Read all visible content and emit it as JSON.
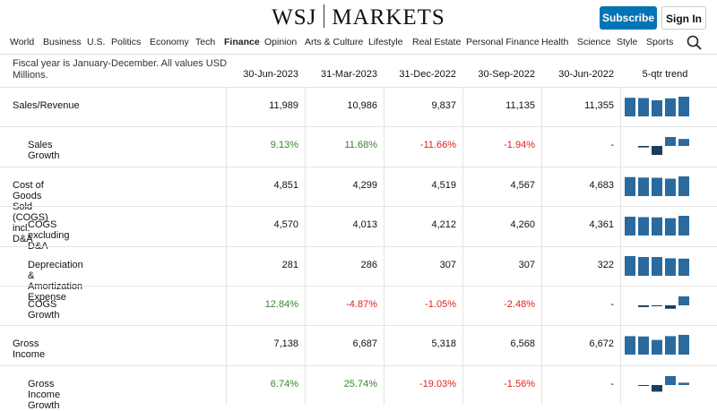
{
  "header": {
    "logo_left": "WSJ",
    "logo_right": "MARKETS",
    "subscribe": "Subscribe",
    "sign_in": "Sign In"
  },
  "nav": [
    "World",
    "Business",
    "U.S.",
    "Politics",
    "Economy",
    "Tech",
    "Finance",
    "Opinion",
    "Arts & Culture",
    "Lifestyle",
    "Real Estate",
    "Personal Finance",
    "Health",
    "Science",
    "Style",
    "Sports"
  ],
  "active_nav": 6,
  "table": {
    "note": "Fiscal year is January-December. All values USD Millions.",
    "columns": [
      "30-Jun-2023",
      "31-Mar-2023",
      "31-Dec-2022",
      "30-Sep-2022",
      "30-Jun-2022"
    ],
    "trend_label": "5-qtr trend",
    "rows": [
      {
        "label": "Sales/Revenue",
        "indent": false,
        "growth": false,
        "values": [
          "11,989",
          "10,986",
          "9,837",
          "11,135",
          "11,355"
        ]
      },
      {
        "label": "Sales Growth",
        "indent": true,
        "growth": true,
        "values": [
          "9.13%",
          "11.68%",
          "-11.66%",
          "-1.94%",
          "-"
        ]
      },
      {
        "label": "Cost of Goods Sold (COGS) incl. D&A",
        "indent": false,
        "growth": false,
        "values": [
          "4,851",
          "4,299",
          "4,519",
          "4,567",
          "4,683"
        ]
      },
      {
        "label": "COGS excluding D&A",
        "indent": true,
        "growth": false,
        "values": [
          "4,570",
          "4,013",
          "4,212",
          "4,260",
          "4,361"
        ]
      },
      {
        "label": "Depreciation & Amortization Expense",
        "indent": true,
        "growth": false,
        "values": [
          "281",
          "286",
          "307",
          "307",
          "322"
        ]
      },
      {
        "label": "COGS Growth",
        "indent": true,
        "growth": true,
        "values": [
          "12.84%",
          "-4.87%",
          "-1.05%",
          "-2.48%",
          "-"
        ]
      },
      {
        "label": "Gross Income",
        "indent": false,
        "growth": false,
        "values": [
          "7,138",
          "6,687",
          "5,318",
          "6,568",
          "6,672"
        ]
      },
      {
        "label": "Gross Income Growth",
        "indent": true,
        "growth": true,
        "values": [
          "6.74%",
          "25.74%",
          "-19.03%",
          "-1.56%",
          "-"
        ]
      }
    ]
  }
}
